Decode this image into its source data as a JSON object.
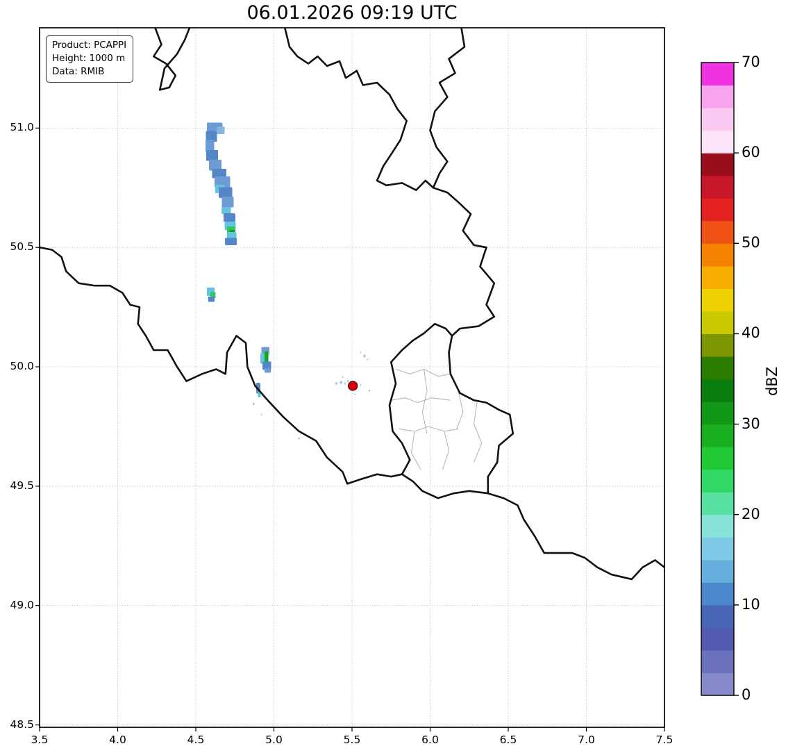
{
  "title": "06.01.2026 09:19 UTC",
  "info_box": {
    "product": "Product: PCAPPI",
    "height": "Height: 1000 m",
    "data": "Data: RMIB"
  },
  "axes": {
    "x_tick_values": [
      3.5,
      4.0,
      4.5,
      5.0,
      5.5,
      6.0,
      6.5,
      7.0,
      7.5
    ],
    "x_tick_labels": [
      "3.5",
      "4.0",
      "4.5",
      "5.0",
      "5.5",
      "6.0",
      "6.5",
      "7.0",
      "7.5"
    ],
    "y_tick_values": [
      48.5,
      49.0,
      49.5,
      50.0,
      50.5,
      51.0
    ],
    "y_tick_labels": [
      "48.5",
      "49.0",
      "49.5",
      "50.0",
      "50.5",
      "51.0"
    ]
  },
  "grid": {
    "color": "#c4c4c4"
  },
  "colorbar": {
    "label": "dBZ",
    "vmin": 0,
    "vmax": 70,
    "tick_values": [
      0,
      10,
      20,
      30,
      40,
      50,
      60,
      70
    ],
    "tick_labels": [
      "0",
      "10",
      "20",
      "30",
      "40",
      "50",
      "60",
      "70"
    ],
    "bands": [
      "#8589c9",
      "#6c71bd",
      "#545bb1",
      "#4766b6",
      "#4c88cc",
      "#64aede",
      "#7ecae6",
      "#88e2da",
      "#58e0a2",
      "#30d866",
      "#20c836",
      "#18b020",
      "#109816",
      "#0b7e10",
      "#2c7c02",
      "#7e9600",
      "#c9c900",
      "#edd100",
      "#f5ad00",
      "#f58100",
      "#f15316",
      "#e52222",
      "#c91629",
      "#990d1d",
      "#fbe4f8",
      "#f9c9f1",
      "#f9a2ee",
      "#ef32e2"
    ]
  },
  "chart_data": {
    "type": "heatmap",
    "title": "06.01.2026 09:19 UTC",
    "units": "dBZ",
    "x_range": [
      3.5,
      7.5
    ],
    "y_range": [
      48.49,
      51.42
    ],
    "legend_position": "right-colorbar",
    "grid": "dotted",
    "radar_site": {
      "lon": 5.505,
      "lat": 49.92,
      "marker_color": "#dd0011"
    },
    "echo_cell_fields": [
      "lon",
      "lat",
      "width_deg",
      "height_deg",
      "color"
    ],
    "echo_cells": [
      [
        4.62,
        51.005,
        0.1,
        0.035,
        "#6d9bd4"
      ],
      [
        4.66,
        50.99,
        0.05,
        0.03,
        "#88b4e0"
      ],
      [
        4.6,
        50.965,
        0.07,
        0.045,
        "#5586c8"
      ],
      [
        4.59,
        50.925,
        0.055,
        0.05,
        "#6d9bd4"
      ],
      [
        4.605,
        50.885,
        0.075,
        0.045,
        "#5586c8"
      ],
      [
        4.625,
        50.845,
        0.08,
        0.045,
        "#6d9bd4"
      ],
      [
        4.65,
        50.81,
        0.09,
        0.04,
        "#5586c8"
      ],
      [
        4.67,
        50.775,
        0.1,
        0.045,
        "#6d9bd4"
      ],
      [
        4.655,
        50.745,
        0.06,
        0.035,
        "#62c4e0"
      ],
      [
        4.69,
        50.73,
        0.085,
        0.045,
        "#5586c8"
      ],
      [
        4.705,
        50.69,
        0.075,
        0.045,
        "#6d9bd4"
      ],
      [
        4.695,
        50.655,
        0.06,
        0.03,
        "#62c4e0"
      ],
      [
        4.715,
        50.625,
        0.075,
        0.035,
        "#5586c8"
      ],
      [
        4.72,
        50.59,
        0.07,
        0.035,
        "#62c4e0"
      ],
      [
        4.725,
        50.575,
        0.05,
        0.025,
        "#2ec85e"
      ],
      [
        4.735,
        50.565,
        0.035,
        0.018,
        "#14a818"
      ],
      [
        4.73,
        50.55,
        0.06,
        0.028,
        "#62c4e0"
      ],
      [
        4.725,
        50.525,
        0.075,
        0.03,
        "#5586c8"
      ],
      [
        4.595,
        50.315,
        0.05,
        0.035,
        "#62c4e0"
      ],
      [
        4.61,
        50.3,
        0.035,
        0.025,
        "#2ec85e"
      ],
      [
        4.6,
        50.283,
        0.04,
        0.022,
        "#5586c8"
      ],
      [
        4.945,
        50.065,
        0.05,
        0.035,
        "#6d9bd4"
      ],
      [
        4.94,
        50.035,
        0.055,
        0.045,
        "#62c4e0"
      ],
      [
        4.952,
        50.04,
        0.022,
        0.05,
        "#14a818"
      ],
      [
        4.955,
        50.005,
        0.055,
        0.035,
        "#5586c8"
      ],
      [
        4.96,
        49.985,
        0.04,
        0.02,
        "#6d9bd4"
      ],
      [
        4.9,
        49.91,
        0.025,
        0.045,
        "#5586c8"
      ],
      [
        4.906,
        49.885,
        0.018,
        0.025,
        "#62c4e0"
      ],
      [
        5.43,
        49.935,
        0.016,
        0.012,
        "#a9c3e4"
      ],
      [
        5.455,
        49.93,
        0.012,
        0.01,
        "#c0d2ec"
      ],
      [
        5.475,
        49.94,
        0.012,
        0.01,
        "#a9c3e4"
      ],
      [
        5.49,
        49.925,
        0.01,
        0.009,
        "#c0d2ec"
      ],
      [
        5.53,
        49.93,
        0.012,
        0.01,
        "#a9c3e4"
      ],
      [
        5.555,
        49.925,
        0.01,
        0.009,
        "#c0d2ec"
      ],
      [
        5.44,
        49.957,
        0.01,
        0.008,
        "#c0d2ec"
      ],
      [
        5.4,
        49.93,
        0.012,
        0.01,
        "#a9c3e4"
      ],
      [
        5.58,
        50.045,
        0.014,
        0.012,
        "#a9c3e4"
      ],
      [
        5.6,
        50.03,
        0.01,
        0.009,
        "#c0d2ec"
      ],
      [
        5.555,
        50.06,
        0.01,
        0.008,
        "#c0d2ec"
      ],
      [
        5.52,
        49.885,
        0.01,
        0.008,
        "#c0d2ec"
      ],
      [
        5.61,
        49.9,
        0.01,
        0.008,
        "#a9c3e4"
      ],
      [
        4.87,
        49.845,
        0.012,
        0.01,
        "#a9c3e4"
      ],
      [
        5.16,
        49.7,
        0.012,
        0.01,
        "#c0d2ec"
      ],
      [
        4.92,
        49.8,
        0.01,
        0.008,
        "#c0d2ec"
      ]
    ]
  },
  "map": {
    "border_color": "#111111",
    "region_border_color": "#b8b8b8",
    "country_borders": [
      [
        [
          4.24,
          51.42
        ],
        [
          4.28,
          51.35
        ],
        [
          4.23,
          51.3
        ],
        [
          4.31,
          51.27
        ],
        [
          4.37,
          51.22
        ],
        [
          4.33,
          51.17
        ],
        [
          4.27,
          51.16
        ],
        [
          4.3,
          51.25
        ],
        [
          4.38,
          51.31
        ],
        [
          4.43,
          51.37
        ],
        [
          4.46,
          51.42
        ]
      ],
      [
        [
          5.07,
          51.42
        ],
        [
          5.1,
          51.34
        ],
        [
          5.15,
          51.3
        ],
        [
          5.22,
          51.27
        ],
        [
          5.28,
          51.3
        ],
        [
          5.34,
          51.26
        ],
        [
          5.42,
          51.28
        ],
        [
          5.46,
          51.21
        ],
        [
          5.53,
          51.24
        ],
        [
          5.57,
          51.18
        ],
        [
          5.66,
          51.19
        ],
        [
          5.74,
          51.14
        ],
        [
          5.79,
          51.08
        ],
        [
          5.85,
          51.03
        ],
        [
          5.81,
          50.95
        ],
        [
          5.75,
          50.89
        ],
        [
          5.7,
          50.84
        ],
        [
          5.66,
          50.78
        ],
        [
          5.72,
          50.76
        ],
        [
          5.82,
          50.77
        ],
        [
          5.91,
          50.74
        ],
        [
          5.97,
          50.78
        ],
        [
          6.02,
          50.75
        ],
        [
          6.06,
          50.81
        ],
        [
          6.11,
          50.86
        ],
        [
          6.04,
          50.92
        ],
        [
          6.0,
          50.99
        ],
        [
          6.03,
          51.07
        ],
        [
          6.11,
          51.13
        ],
        [
          6.06,
          51.19
        ],
        [
          6.16,
          51.23
        ],
        [
          6.12,
          51.29
        ],
        [
          6.22,
          51.34
        ],
        [
          6.2,
          51.42
        ]
      ],
      [
        [
          6.02,
          50.75
        ],
        [
          6.11,
          50.73
        ],
        [
          6.18,
          50.69
        ],
        [
          6.26,
          50.64
        ],
        [
          6.21,
          50.57
        ],
        [
          6.28,
          50.51
        ],
        [
          6.36,
          50.5
        ],
        [
          6.32,
          50.42
        ],
        [
          6.41,
          50.35
        ],
        [
          6.36,
          50.26
        ],
        [
          6.41,
          50.21
        ],
        [
          6.31,
          50.17
        ],
        [
          6.19,
          50.16
        ],
        [
          6.14,
          50.13
        ]
      ],
      [
        [
          6.14,
          50.13
        ],
        [
          6.12,
          50.06
        ],
        [
          6.13,
          49.97
        ],
        [
          6.19,
          49.89
        ],
        [
          6.28,
          49.86
        ],
        [
          6.36,
          49.85
        ],
        [
          6.44,
          49.82
        ],
        [
          6.51,
          49.8
        ],
        [
          6.53,
          49.72
        ],
        [
          6.44,
          49.67
        ],
        [
          6.43,
          49.6
        ],
        [
          6.37,
          49.54
        ],
        [
          6.37,
          49.47
        ],
        [
          6.25,
          49.48
        ],
        [
          6.15,
          49.47
        ],
        [
          6.05,
          49.45
        ],
        [
          5.95,
          49.48
        ],
        [
          5.89,
          49.52
        ],
        [
          5.82,
          49.55
        ],
        [
          5.87,
          49.61
        ],
        [
          5.82,
          49.68
        ],
        [
          5.76,
          49.73
        ],
        [
          5.74,
          49.84
        ],
        [
          5.78,
          49.93
        ],
        [
          5.75,
          50.02
        ],
        [
          5.82,
          50.07
        ],
        [
          5.89,
          50.11
        ],
        [
          5.96,
          50.14
        ],
        [
          6.03,
          50.18
        ],
        [
          6.1,
          50.16
        ],
        [
          6.14,
          50.13
        ]
      ],
      [
        [
          3.5,
          50.5
        ],
        [
          3.58,
          50.49
        ],
        [
          3.64,
          50.46
        ],
        [
          3.67,
          50.4
        ],
        [
          3.75,
          50.35
        ],
        [
          3.85,
          50.34
        ],
        [
          3.95,
          50.34
        ],
        [
          4.03,
          50.31
        ],
        [
          4.08,
          50.26
        ],
        [
          4.14,
          50.25
        ],
        [
          4.13,
          50.18
        ],
        [
          4.18,
          50.13
        ],
        [
          4.23,
          50.07
        ],
        [
          4.32,
          50.07
        ],
        [
          4.38,
          50.0
        ],
        [
          4.44,
          49.94
        ],
        [
          4.54,
          49.97
        ],
        [
          4.63,
          49.99
        ],
        [
          4.69,
          49.97
        ],
        [
          4.7,
          50.06
        ],
        [
          4.76,
          50.13
        ],
        [
          4.82,
          50.1
        ],
        [
          4.83,
          50.0
        ],
        [
          4.88,
          49.92
        ],
        [
          4.96,
          49.86
        ],
        [
          5.06,
          49.79
        ],
        [
          5.16,
          49.73
        ],
        [
          5.27,
          49.69
        ],
        [
          5.34,
          49.62
        ],
        [
          5.44,
          49.56
        ],
        [
          5.47,
          49.51
        ],
        [
          5.56,
          49.53
        ],
        [
          5.66,
          49.55
        ],
        [
          5.75,
          49.54
        ],
        [
          5.82,
          49.55
        ]
      ],
      [
        [
          6.37,
          49.47
        ],
        [
          6.47,
          49.45
        ],
        [
          6.56,
          49.42
        ],
        [
          6.6,
          49.36
        ],
        [
          6.67,
          49.29
        ],
        [
          6.73,
          49.22
        ],
        [
          6.82,
          49.22
        ],
        [
          6.91,
          49.22
        ],
        [
          6.99,
          49.2
        ],
        [
          7.07,
          49.16
        ],
        [
          7.16,
          49.13
        ],
        [
          7.29,
          49.11
        ],
        [
          7.36,
          49.16
        ],
        [
          7.44,
          49.19
        ],
        [
          7.5,
          49.16
        ]
      ]
    ],
    "region_borders": [
      [
        [
          5.78,
          49.99
        ],
        [
          5.87,
          49.97
        ],
        [
          5.96,
          49.99
        ],
        [
          6.05,
          49.96
        ],
        [
          6.13,
          49.97
        ]
      ],
      [
        [
          5.75,
          49.86
        ],
        [
          5.84,
          49.87
        ],
        [
          5.92,
          49.85
        ],
        [
          6.01,
          49.87
        ],
        [
          6.13,
          49.86
        ]
      ],
      [
        [
          5.96,
          49.99
        ],
        [
          5.98,
          49.9
        ],
        [
          5.95,
          49.81
        ],
        [
          5.98,
          49.72
        ]
      ],
      [
        [
          5.8,
          49.74
        ],
        [
          5.9,
          49.73
        ],
        [
          5.99,
          49.75
        ],
        [
          6.09,
          49.73
        ],
        [
          6.18,
          49.74
        ]
      ],
      [
        [
          6.09,
          49.73
        ],
        [
          6.12,
          49.65
        ],
        [
          6.08,
          49.57
        ]
      ],
      [
        [
          5.9,
          49.73
        ],
        [
          5.88,
          49.64
        ],
        [
          5.94,
          49.57
        ]
      ],
      [
        [
          6.18,
          49.9
        ],
        [
          6.21,
          49.81
        ],
        [
          6.17,
          49.74
        ]
      ],
      [
        [
          6.3,
          49.85
        ],
        [
          6.28,
          49.76
        ],
        [
          6.33,
          49.68
        ],
        [
          6.28,
          49.6
        ]
      ]
    ]
  }
}
